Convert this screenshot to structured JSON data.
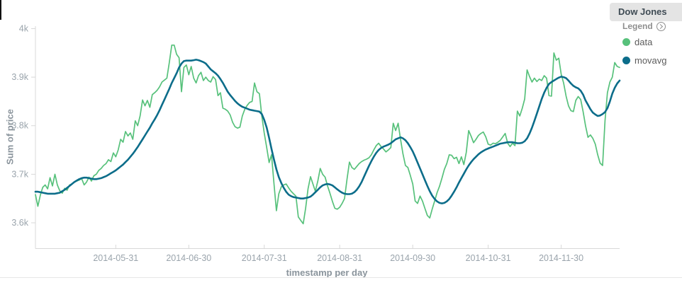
{
  "panel": {
    "title": "Dow Jones"
  },
  "legend": {
    "header": "Legend",
    "items": [
      {
        "label": "data",
        "color": "#57c17b"
      },
      {
        "label": "movavg",
        "color": "#0c6d8a"
      }
    ]
  },
  "colors": {
    "data_series": "#57c17b",
    "movavg_series": "#0c6d8a",
    "axis_text": "#9aa4ac",
    "axis_line": "#d8d8d8",
    "title_tab_bg": "#e4e4e4"
  },
  "chart_data": {
    "type": "line",
    "title": "Dow Jones",
    "xlabel": "timestamp per day",
    "ylabel": "Sum of price",
    "grid": false,
    "legend_position": "right",
    "x_unit": "days since 2014-04-28, one point per day",
    "x_start_date": "2014-04-28",
    "x_end_date": "2014-12-24",
    "x_days_total": 240,
    "ylim": [
      3552,
      4005
    ],
    "y_ticks": [
      {
        "value": 4000,
        "label": "4k"
      },
      {
        "value": 3900,
        "label": "3.9k"
      },
      {
        "value": 3800,
        "label": "3.8k"
      },
      {
        "value": 3700,
        "label": "3.7k"
      },
      {
        "value": 3600,
        "label": "3.6k"
      }
    ],
    "x_ticks": [
      {
        "day": 33,
        "label": "2014-05-31"
      },
      {
        "day": 63,
        "label": "2014-06-30"
      },
      {
        "day": 94,
        "label": "2014-07-31"
      },
      {
        "day": 125,
        "label": "2014-08-31"
      },
      {
        "day": 155,
        "label": "2014-09-30"
      },
      {
        "day": 186,
        "label": "2014-10-31"
      },
      {
        "day": 216,
        "label": "2014-11-30"
      }
    ],
    "series": [
      {
        "name": "data",
        "color": "#57c17b",
        "stroke_width": 1.7,
        "values": [
          3658,
          3634,
          3657,
          3673,
          3678,
          3670,
          3693,
          3676,
          3700,
          3678,
          3666,
          3661,
          3671,
          3667,
          3678,
          3680,
          3684,
          3686,
          3688,
          3691,
          3678,
          3684,
          3694,
          3686,
          3697,
          3700,
          3708,
          3712,
          3718,
          3722,
          3730,
          3726,
          3744,
          3736,
          3750,
          3772,
          3766,
          3788,
          3779,
          3785,
          3772,
          3810,
          3800,
          3820,
          3853,
          3841,
          3852,
          3838,
          3864,
          3868,
          3873,
          3880,
          3890,
          3894,
          3898,
          3930,
          3966,
          3966,
          3947,
          3940,
          3870,
          3920,
          3925,
          3905,
          3922,
          3898,
          3888,
          3903,
          3910,
          3893,
          3900,
          3893,
          3890,
          3901,
          3895,
          3862,
          3868,
          3836,
          3834,
          3830,
          3822,
          3807,
          3798,
          3795,
          3797,
          3820,
          3834,
          3842,
          3848,
          3850,
          3888,
          3870,
          3866,
          3820,
          3785,
          3755,
          3724,
          3740,
          3680,
          3625,
          3660,
          3674,
          3678,
          3680,
          3672,
          3665,
          3660,
          3655,
          3612,
          3605,
          3598,
          3630,
          3670,
          3695,
          3680,
          3665,
          3686,
          3712,
          3700,
          3694,
          3676,
          3661,
          3644,
          3630,
          3628,
          3632,
          3640,
          3650,
          3690,
          3725,
          3714,
          3710,
          3716,
          3722,
          3726,
          3729,
          3731,
          3734,
          3740,
          3750,
          3759,
          3764,
          3757,
          3752,
          3746,
          3750,
          3755,
          3805,
          3790,
          3805,
          3772,
          3742,
          3718,
          3714,
          3698,
          3680,
          3645,
          3640,
          3655,
          3645,
          3630,
          3615,
          3610,
          3628,
          3645,
          3662,
          3675,
          3692,
          3710,
          3722,
          3740,
          3739,
          3732,
          3735,
          3722,
          3736,
          3720,
          3745,
          3790,
          3778,
          3765,
          3772,
          3780,
          3784,
          3787,
          3777,
          3762,
          3760,
          3764,
          3763,
          3766,
          3770,
          3777,
          3784,
          3764,
          3757,
          3764,
          3759,
          3830,
          3820,
          3836,
          3855,
          3915,
          3901,
          3890,
          3898,
          3891,
          3896,
          3893,
          3903,
          3898,
          3862,
          3861,
          3950,
          3935,
          3939,
          3906,
          3888,
          3861,
          3841,
          3831,
          3829,
          3852,
          3860,
          3854,
          3829,
          3800,
          3776,
          3781,
          3774,
          3762,
          3740,
          3723,
          3718,
          3810,
          3868,
          3890,
          3900,
          3930,
          3922,
          3920
        ]
      },
      {
        "name": "movavg",
        "color": "#0c6d8a",
        "stroke_width": 2.6,
        "values": [
          3664,
          3664,
          3663,
          3662,
          3661,
          3660,
          3660,
          3660,
          3660,
          3661,
          3662,
          3665,
          3668,
          3672,
          3676,
          3680,
          3684,
          3687,
          3690,
          3692,
          3693,
          3693,
          3692,
          3691,
          3690,
          3690,
          3691,
          3692,
          3694,
          3696,
          3699,
          3702,
          3705,
          3708,
          3712,
          3716,
          3720,
          3725,
          3730,
          3736,
          3742,
          3749,
          3756,
          3764,
          3772,
          3780,
          3788,
          3796,
          3805,
          3813,
          3822,
          3832,
          3843,
          3854,
          3865,
          3876,
          3888,
          3898,
          3908,
          3920,
          3928,
          3933,
          3934,
          3934,
          3934,
          3935,
          3936,
          3935,
          3933,
          3931,
          3928,
          3922,
          3916,
          3912,
          3908,
          3903,
          3896,
          3888,
          3879,
          3870,
          3863,
          3857,
          3851,
          3846,
          3842,
          3839,
          3837,
          3835,
          3833,
          3832,
          3831,
          3830,
          3829,
          3824,
          3812,
          3796,
          3775,
          3752,
          3730,
          3710,
          3694,
          3682,
          3672,
          3664,
          3658,
          3655,
          3653,
          3652,
          3651,
          3650,
          3650,
          3651,
          3652,
          3654,
          3658,
          3663,
          3668,
          3673,
          3677,
          3679,
          3680,
          3679,
          3677,
          3673,
          3669,
          3665,
          3662,
          3660,
          3659,
          3659,
          3660,
          3663,
          3668,
          3675,
          3684,
          3695,
          3706,
          3717,
          3727,
          3736,
          3744,
          3750,
          3754,
          3757,
          3759,
          3761,
          3764,
          3768,
          3772,
          3774,
          3776,
          3774,
          3770,
          3764,
          3756,
          3747,
          3736,
          3724,
          3712,
          3700,
          3688,
          3676,
          3665,
          3656,
          3649,
          3644,
          3641,
          3640,
          3641,
          3644,
          3649,
          3656,
          3664,
          3673,
          3683,
          3692,
          3701,
          3710,
          3718,
          3725,
          3731,
          3736,
          3741,
          3745,
          3748,
          3751,
          3753,
          3755,
          3757,
          3759,
          3761,
          3763,
          3764,
          3765,
          3766,
          3766,
          3766,
          3765,
          3764,
          3764,
          3765,
          3768,
          3774,
          3784,
          3796,
          3810,
          3825,
          3840,
          3855,
          3868,
          3878,
          3886,
          3890,
          3893,
          3896,
          3899,
          3901,
          3900,
          3898,
          3893,
          3887,
          3882,
          3879,
          3877,
          3872,
          3864,
          3852,
          3843,
          3834,
          3827,
          3823,
          3820,
          3821,
          3824,
          3828,
          3836,
          3850,
          3866,
          3878,
          3887,
          3893
        ]
      }
    ]
  }
}
